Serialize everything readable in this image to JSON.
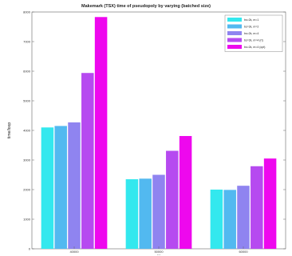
{
  "chart_data": {
    "type": "bar",
    "title": "Makemark (TSX) time of pseudopoly by varying (batched size)",
    "xlabel": "...",
    "ylabel": "time/loop",
    "categories": [
      "40000",
      "50000",
      "60000"
    ],
    "ylim": [
      0,
      8000
    ],
    "yticks": [
      0,
      1000,
      2000,
      3000,
      4000,
      5000,
      6000,
      7000,
      8000
    ],
    "grid": false,
    "legend_position": "top-right",
    "series": [
      {
        "name": "bs=2k, m=1",
        "color": "#33e8ee",
        "values": [
          4100,
          2350,
          2000
        ]
      },
      {
        "name": "bs=2k, m=2",
        "color": "#52b9f0",
        "values": [
          4150,
          2370,
          1990
        ]
      },
      {
        "name": "bs=2k, m=4",
        "color": "#8f84f0",
        "values": [
          4270,
          2500,
          2130
        ]
      },
      {
        "name": "bs=2k, m=4 (rt)",
        "color": "#b64af0",
        "values": [
          5940,
          3310,
          2790
        ]
      },
      {
        "name": "bs=2k, m=4 (opt)",
        "color": "#ee08ee",
        "values": [
          7830,
          3810,
          3050
        ]
      }
    ]
  }
}
